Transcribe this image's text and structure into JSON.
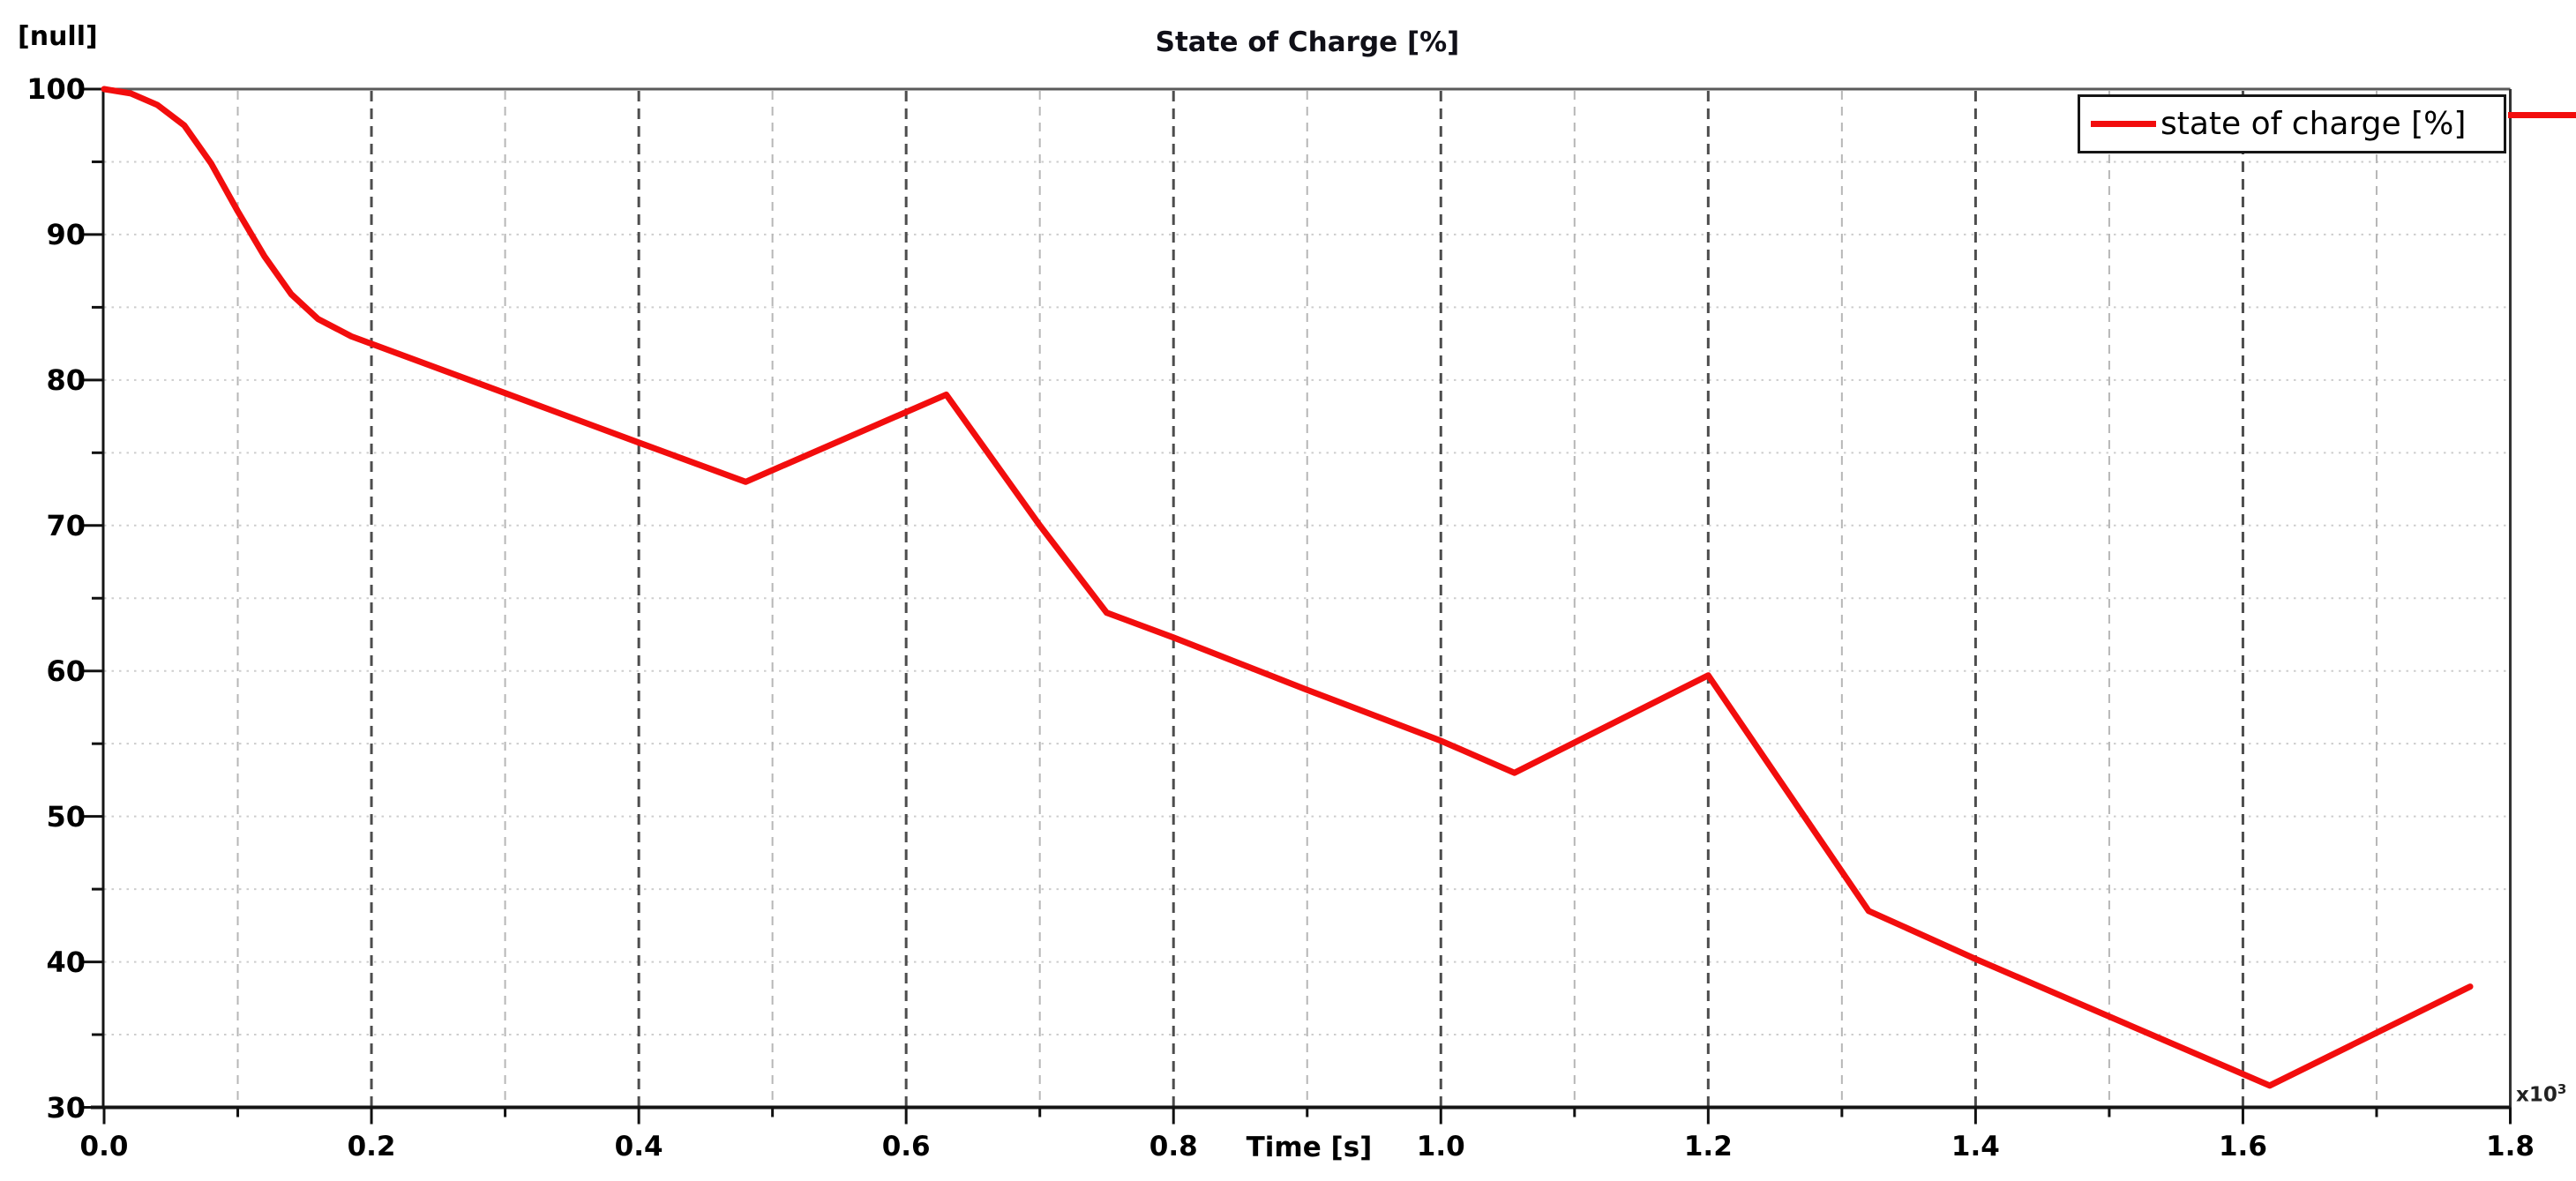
{
  "title": "State of Charge [%]",
  "y_axis_unit_label": "[null]",
  "x_axis_title": "Time [s]",
  "x_multiplier_base": "x10",
  "x_multiplier_exp": "3",
  "legend": {
    "label": "state of charge [%]",
    "position": "top-right"
  },
  "colors": {
    "curve": "#f20d0d",
    "grid_major_dashed": "#4d4d4d",
    "grid_minor_dashed": "#b7b7b7",
    "grid_dotted_horizontal": "#cdcdcd",
    "axis": "#141414",
    "top_border": "#5a5a5a",
    "right_border": "#333333",
    "tick": "#111111"
  },
  "chart_data": {
    "type": "line",
    "title": "State of Charge [%]",
    "xlabel": "Time [s]",
    "ylabel": "[null]",
    "x_unit_note": "x10^3 seconds",
    "xlim": [
      0,
      1.8
    ],
    "ylim": [
      30,
      100
    ],
    "grid": "vertical dashed every 0.1 (dark at 0.2 multiples), horizontal dotted every 5",
    "legend_position": "top-right",
    "x_ticks": [
      {
        "t": 0.0,
        "label": "0.0"
      },
      {
        "t": 0.2,
        "label": "0.2"
      },
      {
        "t": 0.4,
        "label": "0.4"
      },
      {
        "t": 0.6,
        "label": "0.6"
      },
      {
        "t": 0.8,
        "label": "0.8"
      },
      {
        "t": 1.0,
        "label": "1.0"
      },
      {
        "t": 1.2,
        "label": "1.2"
      },
      {
        "t": 1.4,
        "label": "1.4"
      },
      {
        "t": 1.6,
        "label": "1.6"
      },
      {
        "t": 1.8,
        "label": "1.8"
      }
    ],
    "x_minor_ticks": [
      0.1,
      0.3,
      0.5,
      0.7,
      0.9,
      1.1,
      1.3,
      1.5,
      1.7
    ],
    "y_ticks": [
      {
        "v": 100,
        "label": "100"
      },
      {
        "v": 90,
        "label": "90"
      },
      {
        "v": 80,
        "label": "80"
      },
      {
        "v": 70,
        "label": "70"
      },
      {
        "v": 60,
        "label": "60"
      },
      {
        "v": 50,
        "label": "50"
      },
      {
        "v": 40,
        "label": "40"
      },
      {
        "v": 30,
        "label": "30"
      }
    ],
    "y_minor_ticks": [
      95,
      85,
      75,
      65,
      55,
      45,
      35
    ],
    "series": [
      {
        "name": "state of charge [%]",
        "color": "#f20d0d",
        "points": [
          [
            0.0,
            100.0
          ],
          [
            0.02,
            99.7
          ],
          [
            0.04,
            98.9
          ],
          [
            0.06,
            97.5
          ],
          [
            0.08,
            94.9
          ],
          [
            0.1,
            91.6
          ],
          [
            0.12,
            88.5
          ],
          [
            0.14,
            85.9
          ],
          [
            0.16,
            84.2
          ],
          [
            0.185,
            83.0
          ],
          [
            0.3,
            79.1
          ],
          [
            0.4,
            75.7
          ],
          [
            0.48,
            73.0
          ],
          [
            0.63,
            79.0
          ],
          [
            0.7,
            70.0
          ],
          [
            0.75,
            64.0
          ],
          [
            0.8,
            62.3
          ],
          [
            0.9,
            58.7
          ],
          [
            1.0,
            55.2
          ],
          [
            1.055,
            53.0
          ],
          [
            1.2,
            59.7
          ],
          [
            1.32,
            43.5
          ],
          [
            1.4,
            40.2
          ],
          [
            1.62,
            31.5
          ],
          [
            1.77,
            38.3
          ]
        ]
      }
    ]
  }
}
